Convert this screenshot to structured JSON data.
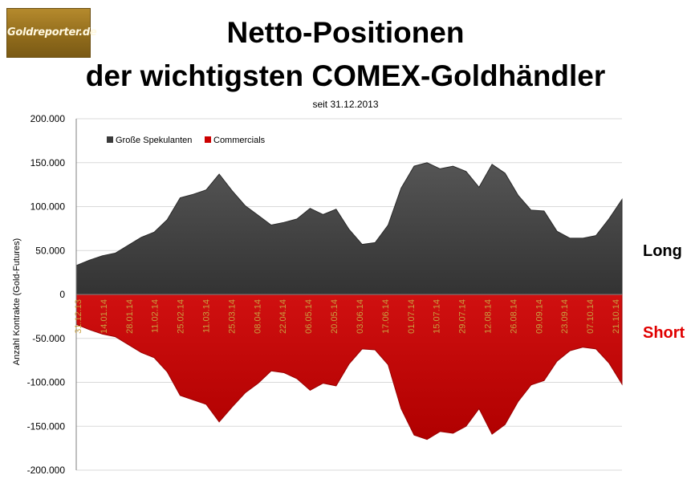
{
  "logo": {
    "text": "Goldreporter.de"
  },
  "header": {
    "title_line1": "Netto-Positionen",
    "title_line2": "der wichtigsten COMEX-Goldhändler",
    "subtitle": "seit 31.12.2013"
  },
  "side_labels": {
    "long": "Long",
    "short": "Short"
  },
  "colors": {
    "long_series": "#3a3a3a",
    "short_series": "#cc0000",
    "short_label": "#e00000",
    "x_tick": "#c8a040"
  },
  "chart_data": {
    "type": "area",
    "ylabel": "Anzahl Kontrakte  (Gold-Futures)",
    "ylim": [
      -200000,
      200000
    ],
    "y_ticks": [
      "200.000",
      "150.000",
      "100.000",
      "50.000",
      "0",
      "-50.000",
      "-100.000",
      "-150.000",
      "-200.000"
    ],
    "x_tick_labels": [
      "31.12.13",
      "14.01.14",
      "28.01.14",
      "11.02.14",
      "25.02.14",
      "11.03.14",
      "25.03.14",
      "08.04.14",
      "22.04.14",
      "06.05.14",
      "20.05.14",
      "03.06.14",
      "17.06.14",
      "01.07.14",
      "15.07.14",
      "29.07.14",
      "12.08.14",
      "26.08.14",
      "09.09.14",
      "23.09.14",
      "07.10.14",
      "21.10.14"
    ],
    "grid": true,
    "legend_position": "top-left",
    "series": [
      {
        "name": "Große Spekulanten",
        "values": [
          33000,
          39000,
          44000,
          47000,
          56000,
          65000,
          71000,
          85000,
          110000,
          114000,
          119000,
          137000,
          118000,
          101000,
          90000,
          79000,
          82000,
          86000,
          98000,
          91000,
          97000,
          74000,
          57000,
          59000,
          79000,
          121000,
          146000,
          150000,
          143000,
          146000,
          140000,
          122000,
          148000,
          138000,
          113000,
          96000,
          95000,
          72000,
          64000,
          64000,
          67000,
          86000,
          108000
        ]
      },
      {
        "name": "Commercials",
        "values": [
          -34000,
          -40000,
          -45000,
          -48000,
          -57000,
          -66000,
          -72000,
          -88000,
          -115000,
          -120000,
          -125000,
          -145000,
          -128000,
          -112000,
          -101000,
          -87000,
          -89000,
          -96000,
          -109000,
          -101000,
          -104000,
          -79000,
          -62000,
          -63000,
          -80000,
          -130000,
          -160000,
          -165000,
          -156000,
          -158000,
          -150000,
          -130000,
          -159000,
          -148000,
          -122000,
          -103000,
          -98000,
          -76000,
          -64000,
          -60000,
          -62000,
          -78000,
          -102000
        ]
      }
    ]
  }
}
